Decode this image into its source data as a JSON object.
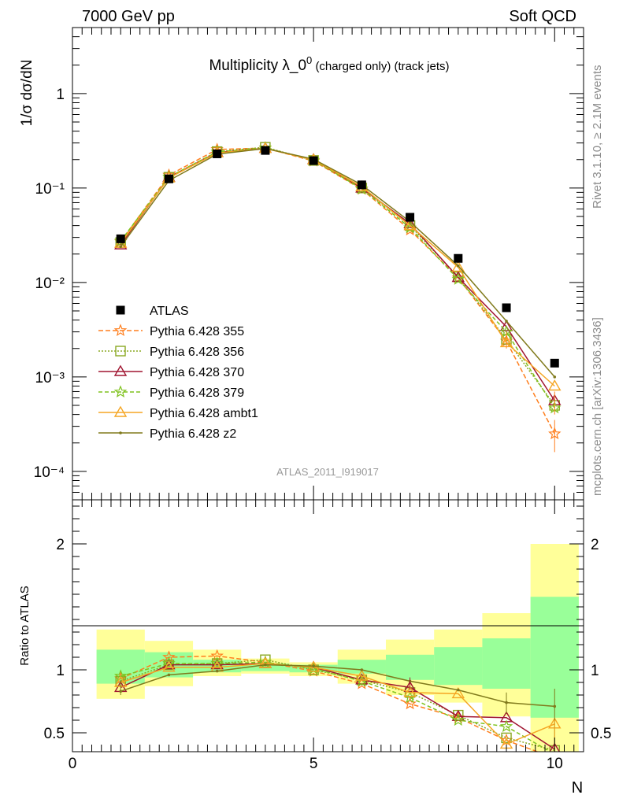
{
  "header": {
    "left": "7000 GeV pp",
    "right": "Soft QCD"
  },
  "side": {
    "rivet": "Rivet 3.1.10, ≥ 2.1M events",
    "mcplots": "mcplots.cern.ch [arXiv:1306.3436]"
  },
  "chart_data": {
    "type": "scatter",
    "title_main": "Multiplicity λ_0",
    "title_sup": "0",
    "title_suffix": "(charged only) (track jets)",
    "watermark": "ATLAS_2011_I919017",
    "ylabel_top": "1/σ dσ/dN",
    "ylabel_bottom": "Ratio to ATLAS",
    "xlabel": "N",
    "xlim": [
      0,
      10.6
    ],
    "ylim_top": [
      5e-05,
      5
    ],
    "yscale_top": "log",
    "ylim_bottom": [
      0.35,
      2.35
    ],
    "x_ticks": [
      "0",
      "5",
      "10"
    ],
    "y_ticks_top": [
      "10⁻⁴",
      "10⁻³",
      "10⁻²",
      "10⁻¹",
      "1"
    ],
    "y_ticks_bottom": [
      "0.5",
      "1",
      "2"
    ],
    "legend_position": "left-middle",
    "x": [
      1,
      2,
      3,
      4,
      5,
      6,
      7,
      8,
      9,
      10
    ],
    "data": {
      "name": "ATLAS",
      "values": [
        0.029,
        0.125,
        0.23,
        0.25,
        0.195,
        0.108,
        0.049,
        0.018,
        0.0054,
        0.0014
      ]
    },
    "series": [
      {
        "name": "Pythia 6.428 355",
        "color": "#ff7f1e",
        "dash": "6,3",
        "marker": "star",
        "values": [
          0.027,
          0.137,
          0.256,
          0.265,
          0.193,
          0.097,
          0.036,
          0.0112,
          0.0024,
          0.00025
        ],
        "ratio": [
          0.93,
          1.1,
          1.11,
          1.06,
          0.99,
          0.89,
          0.73,
          0.62,
          0.44,
          0.18
        ]
      },
      {
        "name": "Pythia 6.428 356",
        "color": "#8aa822",
        "dash": "2,2",
        "marker": "square",
        "values": [
          0.0265,
          0.13,
          0.243,
          0.27,
          0.196,
          0.1,
          0.04,
          0.0115,
          0.0025,
          0.0005
        ],
        "ratio": [
          0.91,
          1.04,
          1.05,
          1.08,
          1.0,
          0.92,
          0.82,
          0.64,
          0.46,
          0.36
        ]
      },
      {
        "name": "Pythia 6.428 370",
        "color": "#a01530",
        "dash": "",
        "marker": "triangle",
        "values": [
          0.025,
          0.13,
          0.238,
          0.263,
          0.2,
          0.1,
          0.042,
          0.0113,
          0.0034,
          0.00056
        ],
        "ratio": [
          0.86,
          1.04,
          1.04,
          1.05,
          1.02,
          0.92,
          0.86,
          0.63,
          0.62,
          0.37
        ]
      },
      {
        "name": "Pythia 6.428 379",
        "color": "#7fc21e",
        "dash": "5,3",
        "marker": "star",
        "values": [
          0.0275,
          0.131,
          0.241,
          0.266,
          0.197,
          0.098,
          0.038,
          0.0108,
          0.003,
          0.00047
        ],
        "ratio": [
          0.95,
          1.05,
          1.05,
          1.06,
          1.01,
          0.91,
          0.78,
          0.6,
          0.55,
          0.33
        ]
      },
      {
        "name": "Pythia 6.428 ambt1",
        "color": "#f5a623",
        "dash": "",
        "marker": "triangle",
        "values": [
          0.026,
          0.128,
          0.235,
          0.262,
          0.199,
          0.103,
          0.04,
          0.0145,
          0.0023,
          0.0008
        ],
        "ratio": [
          0.9,
          1.02,
          1.02,
          1.05,
          1.02,
          0.95,
          0.82,
          0.81,
          0.41,
          0.57
        ]
      },
      {
        "name": "Pythia 6.428 z2",
        "color": "#807a1c",
        "dash": "",
        "marker": "dot",
        "values": [
          0.024,
          0.12,
          0.228,
          0.262,
          0.202,
          0.108,
          0.044,
          0.015,
          0.0039,
          0.001
        ],
        "ratio": [
          0.83,
          0.96,
          0.99,
          1.04,
          1.03,
          1.0,
          0.91,
          0.84,
          0.74,
          0.71
        ]
      }
    ],
    "band_yellow": [
      [
        0.77,
        1.32
      ],
      [
        0.87,
        1.23
      ],
      [
        0.95,
        1.16
      ],
      [
        0.97,
        1.09
      ],
      [
        0.95,
        1.06
      ],
      [
        0.89,
        1.16
      ],
      [
        0.8,
        1.24
      ],
      [
        0.74,
        1.32
      ],
      [
        0.63,
        1.45
      ],
      [
        0.35,
        2.0
      ]
    ],
    "band_green": [
      [
        0.89,
        1.16
      ],
      [
        0.94,
        1.14
      ],
      [
        0.98,
        1.08
      ],
      [
        0.99,
        1.05
      ],
      [
        0.98,
        1.04
      ],
      [
        0.97,
        1.08
      ],
      [
        0.92,
        1.12
      ],
      [
        0.88,
        1.18
      ],
      [
        0.85,
        1.25
      ],
      [
        0.62,
        1.58
      ]
    ]
  }
}
